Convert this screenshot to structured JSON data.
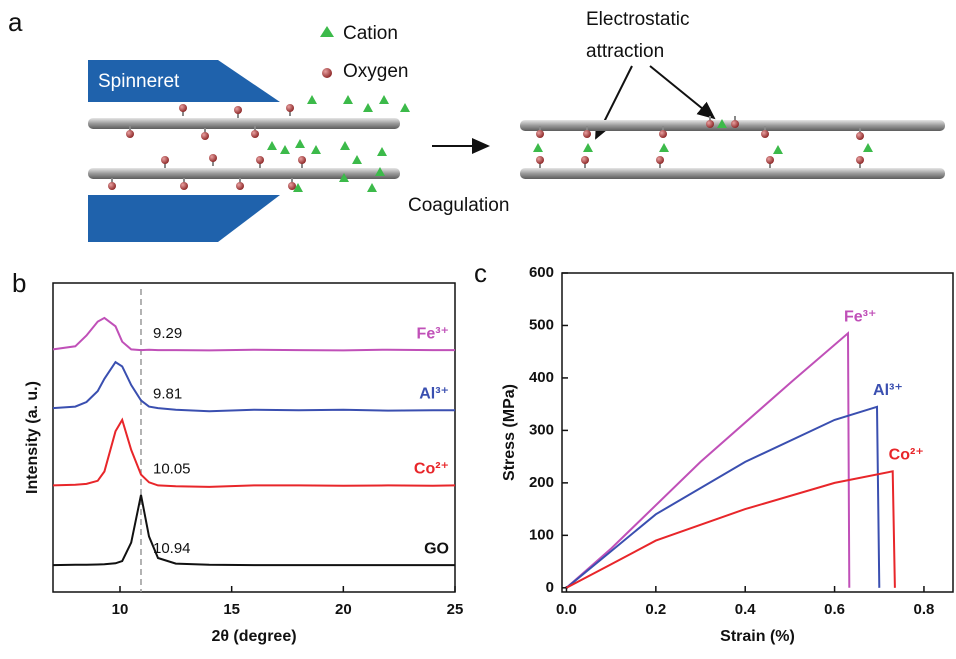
{
  "diagram": {
    "panel_label": "a",
    "spinneret": "Spinneret",
    "legend": [
      "Cation",
      "Oxygen"
    ],
    "annotation": [
      "Electrostatic",
      "attraction"
    ],
    "process": "Coagulation"
  },
  "panel_labels": [
    "b",
    "c"
  ],
  "chart_data": [
    {
      "type": "line",
      "xlabel": "2θ (degree)",
      "ylabel": "Intensity (a. u.)",
      "x": [
        7,
        8,
        8.5,
        9,
        9.3,
        9.8,
        10.1,
        10.5,
        10.94,
        11.3,
        11.7,
        12.5,
        14,
        16,
        18,
        20,
        22,
        24,
        25
      ],
      "series": [
        {
          "name": "Fe³⁺",
          "color": "#c050b8",
          "values": [
            7.85,
            7.95,
            8.3,
            8.75,
            8.87,
            8.6,
            8.1,
            7.85,
            7.83,
            7.84,
            7.83,
            7.83,
            7.82,
            7.84,
            7.83,
            7.82,
            7.84,
            7.83,
            7.83
          ]
        },
        {
          "name": "Al³⁺",
          "color": "#3a4fb0",
          "values": [
            5.95,
            6.0,
            6.15,
            6.5,
            6.9,
            7.44,
            7.3,
            6.7,
            6.2,
            6.0,
            5.95,
            5.9,
            5.85,
            5.9,
            5.88,
            5.9,
            5.87,
            5.88,
            5.88
          ]
        },
        {
          "name": "Co²⁺",
          "color": "#e8262a",
          "values": [
            3.45,
            3.47,
            3.5,
            3.6,
            3.9,
            5.2,
            5.57,
            4.6,
            3.8,
            3.55,
            3.45,
            3.42,
            3.4,
            3.45,
            3.45,
            3.44,
            3.45,
            3.44,
            3.45
          ]
        },
        {
          "name": "GO",
          "color": "#111111",
          "values": [
            0.87,
            0.88,
            0.88,
            0.89,
            0.9,
            0.93,
            1.0,
            1.6,
            3.14,
            1.8,
            1.1,
            0.92,
            0.88,
            0.87,
            0.87,
            0.87,
            0.87,
            0.87,
            0.87
          ]
        }
      ],
      "peaks": [
        9.29,
        9.81,
        10.05,
        10.94
      ],
      "xlim": [
        7,
        25
      ],
      "xticks": [
        10,
        15,
        20,
        25
      ],
      "ylim": [
        0,
        10
      ]
    },
    {
      "type": "line",
      "xlabel": "Strain (%)",
      "ylabel": "Stress (MPa)",
      "series": [
        {
          "name": "Fe³⁺",
          "color": "#c050b8",
          "x": [
            0,
            0.1,
            0.3,
            0.5,
            0.63,
            0.633
          ],
          "values": [
            0,
            75,
            240,
            390,
            485,
            0
          ]
        },
        {
          "name": "Al³⁺",
          "color": "#3a4fb0",
          "x": [
            0,
            0.1,
            0.2,
            0.4,
            0.6,
            0.695,
            0.7
          ],
          "values": [
            0,
            70,
            140,
            240,
            320,
            345,
            0
          ]
        },
        {
          "name": "Co²⁺",
          "color": "#e8262a",
          "x": [
            0,
            0.1,
            0.2,
            0.4,
            0.6,
            0.73,
            0.735
          ],
          "values": [
            0,
            45,
            90,
            150,
            200,
            222,
            0
          ]
        }
      ],
      "xlim": [
        -0.01,
        0.865
      ],
      "xticks": [
        {
          "value": 0,
          "label": "0.0"
        },
        0.2,
        0.4,
        0.6,
        0.8
      ],
      "ylim": [
        -8,
        600
      ],
      "yticks": [
        0,
        100,
        200,
        300,
        400,
        500,
        600
      ]
    }
  ]
}
